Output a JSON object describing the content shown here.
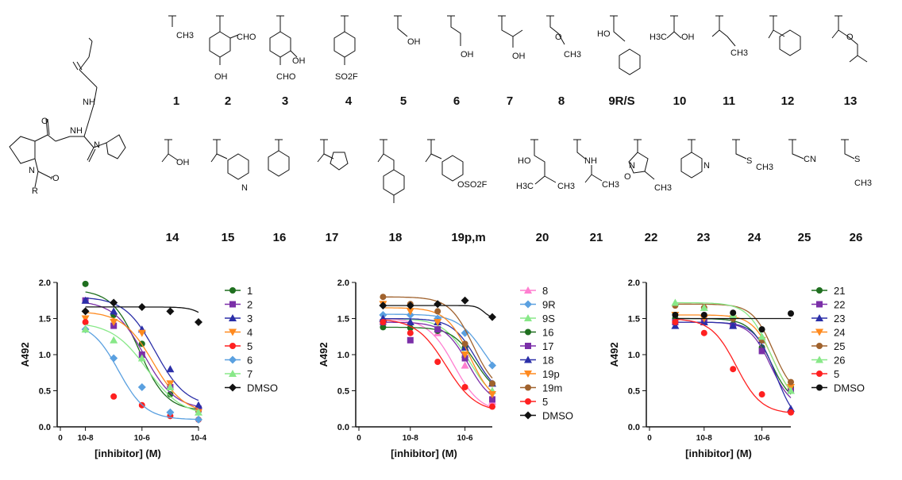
{
  "compound_labels_row1": [
    "1",
    "2",
    "3",
    "4",
    "5",
    "6",
    "7",
    "8",
    "9R/S",
    "10",
    "11",
    "12",
    "13"
  ],
  "compound_labels_row2": [
    "14",
    "15",
    "16",
    "17",
    "18",
    "19p,m",
    "20",
    "21",
    "22",
    "23",
    "24",
    "25",
    "26"
  ],
  "substituent_text": {
    "c1": "CH3",
    "c2a": "CHO",
    "c2b": "OH",
    "c3a": "OH",
    "c3b": "CHO",
    "c4": "SO2F",
    "c5": "OH",
    "c6": "OH",
    "c7": "OH",
    "c8a": "O",
    "c8b": "CH3",
    "c9": "HO",
    "c10a": "H3C",
    "c10b": "OH",
    "c11": "CH3",
    "c13": "O",
    "c14": "OH",
    "c15": "N",
    "c19": "OSO2F",
    "c20a": "HO",
    "c20b": "H3C",
    "c20c": "CH3",
    "c21a": "NH",
    "c21b": "CH3",
    "c22a": "N",
    "c22b": "O",
    "c22c": "CH3",
    "c23": "N",
    "c24a": "S",
    "c24b": "CH3",
    "c25": "CN",
    "c26a": "S",
    "c26b": "CH3",
    "core_nh": "NH",
    "core_n": "N",
    "core_r": "R",
    "core_o": "O"
  },
  "colors": {
    "dark_green": "#1f6f1f",
    "purple": "#7b2fa8",
    "blue": "#2b2fa8",
    "orange": "#ff8a1f",
    "red": "#ff2020",
    "light_blue": "#5aa0e0",
    "light_green": "#88e888",
    "black": "#111111",
    "pink": "#ff7fd0",
    "brown": "#a0622d"
  },
  "chart_data": [
    {
      "type": "scatter",
      "xlabel": "[inhibitor] (M)",
      "ylabel": "A492",
      "x_scale": "log",
      "xlim": [
        1e-09,
        0.0001
      ],
      "ylim": [
        0,
        2.0
      ],
      "xticks": [
        "0",
        "10-8",
        "10-6",
        "10-4"
      ],
      "yticks": [
        "0.0",
        "0.5",
        "1.0",
        "1.5",
        "2.0"
      ],
      "legend_position": "right",
      "series": [
        {
          "name": "1",
          "color": "dark_green",
          "marker": "circle",
          "x": [
            1e-08,
            1e-07,
            1e-06,
            1e-05,
            0.0001
          ],
          "y": [
            1.98,
            1.55,
            1.15,
            0.45,
            0.22
          ],
          "fit": {
            "top": 1.9,
            "bottom": 0.22,
            "ec50": 8e-07,
            "hill": 0.9
          }
        },
        {
          "name": "2",
          "color": "purple",
          "marker": "square",
          "x": [
            1e-08,
            1e-07,
            1e-06,
            1e-05,
            0.0001
          ],
          "y": [
            1.75,
            1.4,
            1.0,
            0.55,
            0.25
          ],
          "fit": {
            "top": 1.75,
            "bottom": 0.24,
            "ec50": 1.2e-06,
            "hill": 0.8
          }
        },
        {
          "name": "3",
          "color": "blue",
          "marker": "triangle",
          "x": [
            1e-08,
            1e-07,
            1e-06,
            1e-05,
            0.0001
          ],
          "y": [
            1.75,
            1.6,
            1.35,
            0.8,
            0.3
          ],
          "fit": {
            "top": 1.8,
            "bottom": 0.28,
            "ec50": 3e-06,
            "hill": 0.8
          }
        },
        {
          "name": "4",
          "color": "orange",
          "marker": "triangle-down",
          "x": [
            1e-08,
            1e-07,
            1e-06,
            1e-05,
            0.0001
          ],
          "y": [
            1.5,
            1.45,
            1.3,
            0.6,
            0.2
          ],
          "fit": {
            "top": 1.6,
            "bottom": 0.18,
            "ec50": 2.5e-06,
            "hill": 0.8
          }
        },
        {
          "name": "5",
          "color": "red",
          "marker": "circle",
          "x": [
            1e-08,
            1e-07,
            1e-06,
            1e-05,
            0.0001
          ],
          "y": [
            1.45,
            0.42,
            0.3,
            0.15,
            0.1
          ],
          "fit": null
        },
        {
          "name": "6",
          "color": "light_blue",
          "marker": "diamond",
          "x": [
            1e-08,
            1e-07,
            1e-06,
            1e-05,
            0.0001
          ],
          "y": [
            1.35,
            0.95,
            0.55,
            0.2,
            0.1
          ],
          "fit": {
            "top": 1.45,
            "bottom": 0.1,
            "ec50": 1.5e-07,
            "hill": 0.9
          }
        },
        {
          "name": "7",
          "color": "light_green",
          "marker": "triangle",
          "x": [
            1e-08,
            1e-07,
            1e-06,
            1e-05,
            0.0001
          ],
          "y": [
            1.35,
            1.2,
            0.95,
            0.55,
            0.2
          ],
          "fit": {
            "top": 1.45,
            "bottom": 0.15,
            "ec50": 1.5e-06,
            "hill": 0.7
          }
        },
        {
          "name": "DMSO",
          "color": "black",
          "marker": "diamond",
          "x": [
            1e-08,
            1e-07,
            1e-06,
            1e-05,
            0.0001
          ],
          "y": [
            1.6,
            1.72,
            1.66,
            1.6,
            1.45
          ],
          "fit": {
            "top": 1.66,
            "bottom": 1.2,
            "ec50": 0.0003,
            "hill": 1.5
          }
        }
      ]
    },
    {
      "type": "scatter",
      "xlabel": "[inhibitor] (M)",
      "ylabel": "A492",
      "x_scale": "log",
      "xlim": [
        1e-10,
        1e-05
      ],
      "ylim": [
        0,
        2.0
      ],
      "xticks": [
        "0",
        "10-8",
        "10-6"
      ],
      "yticks": [
        "0.0",
        "0.5",
        "1.0",
        "1.5",
        "2.0"
      ],
      "legend_position": "right",
      "series": [
        {
          "name": "8",
          "color": "pink",
          "marker": "triangle",
          "x": [
            1e-09,
            1e-08,
            1e-07,
            1e-06,
            1e-05
          ],
          "y": [
            1.5,
            1.45,
            1.3,
            0.85,
            0.35
          ],
          "fit": {
            "top": 1.5,
            "bottom": 0.2,
            "ec50": 4e-07,
            "hill": 0.9
          }
        },
        {
          "name": "9R",
          "color": "light_blue",
          "marker": "diamond",
          "x": [
            1e-09,
            1e-08,
            1e-07,
            1e-06,
            1e-05
          ],
          "y": [
            1.55,
            1.55,
            1.5,
            1.3,
            0.85
          ],
          "fit": {
            "top": 1.56,
            "bottom": 0.5,
            "ec50": 5e-06,
            "hill": 0.9
          }
        },
        {
          "name": "9S",
          "color": "light_green",
          "marker": "triangle",
          "x": [
            1e-09,
            1e-08,
            1e-07,
            1e-06,
            1e-05
          ],
          "y": [
            1.5,
            1.45,
            1.35,
            1.0,
            0.5
          ],
          "fit": {
            "top": 1.5,
            "bottom": 0.3,
            "ec50": 1.5e-06,
            "hill": 0.9
          }
        },
        {
          "name": "16",
          "color": "dark_green",
          "marker": "circle",
          "x": [
            1e-09,
            1e-08,
            1e-07,
            1e-06,
            1e-05
          ],
          "y": [
            1.38,
            1.37,
            1.33,
            1.1,
            0.6
          ],
          "fit": {
            "top": 1.38,
            "bottom": 0.4,
            "ec50": 2.5e-06,
            "hill": 1.0
          }
        },
        {
          "name": "17",
          "color": "purple",
          "marker": "square",
          "x": [
            1e-09,
            1e-08,
            1e-07,
            1e-06,
            1e-05
          ],
          "y": [
            1.45,
            1.2,
            1.35,
            0.95,
            0.38
          ],
          "fit": {
            "top": 1.45,
            "bottom": 0.3,
            "ec50": 1.3e-06,
            "hill": 1.0
          }
        },
        {
          "name": "18",
          "color": "blue",
          "marker": "triangle",
          "x": [
            1e-09,
            1e-08,
            1e-07,
            1e-06,
            1e-05
          ],
          "y": [
            1.5,
            1.45,
            1.45,
            1.1,
            0.6
          ],
          "fit": {
            "top": 1.5,
            "bottom": 0.4,
            "ec50": 2.5e-06,
            "hill": 1.0
          }
        },
        {
          "name": "19p",
          "color": "orange",
          "marker": "triangle-down",
          "x": [
            1e-09,
            1e-08,
            1e-07,
            1e-06,
            1e-05
          ],
          "y": [
            1.7,
            1.6,
            1.45,
            1.0,
            0.45
          ],
          "fit": {
            "top": 1.65,
            "bottom": 0.3,
            "ec50": 1.5e-06,
            "hill": 1.0
          }
        },
        {
          "name": "19m",
          "color": "brown",
          "marker": "circle",
          "x": [
            1e-09,
            1e-08,
            1e-07,
            1e-06,
            1e-05
          ],
          "y": [
            1.8,
            1.7,
            1.6,
            1.15,
            0.6
          ],
          "fit": {
            "top": 1.8,
            "bottom": 0.45,
            "ec50": 2e-06,
            "hill": 1.0
          }
        },
        {
          "name": "5",
          "color": "red",
          "marker": "circle",
          "x": [
            1e-09,
            1e-08,
            1e-07,
            1e-06,
            1e-05
          ],
          "y": [
            1.45,
            1.3,
            0.9,
            0.55,
            0.28
          ],
          "fit": {
            "top": 1.5,
            "bottom": 0.2,
            "ec50": 2e-07,
            "hill": 0.8
          }
        },
        {
          "name": "DMSO",
          "color": "black",
          "marker": "diamond",
          "x": [
            1e-09,
            1e-08,
            1e-07,
            1e-06,
            1e-05
          ],
          "y": [
            1.68,
            1.68,
            1.7,
            1.75,
            1.52
          ],
          "fit": {
            "top": 1.68,
            "bottom": 1.5,
            "ec50": 5e-06,
            "hill": 3.0
          }
        }
      ]
    },
    {
      "type": "scatter",
      "xlabel": "[inhibitor] (M)",
      "ylabel": "A492",
      "x_scale": "log",
      "xlim": [
        1e-10,
        1e-05
      ],
      "ylim": [
        0,
        2.0
      ],
      "xticks": [
        "0",
        "10-8",
        "10-6"
      ],
      "yticks": [
        "0.0",
        "0.5",
        "1.0",
        "1.5",
        "2.0"
      ],
      "legend_position": "right",
      "series": [
        {
          "name": "21",
          "color": "dark_green",
          "marker": "circle",
          "x": [
            1e-09,
            1e-08,
            1e-07,
            1e-06,
            1e-05
          ],
          "y": [
            1.5,
            1.48,
            1.42,
            1.1,
            0.55
          ],
          "fit": {
            "top": 1.5,
            "bottom": 0.3,
            "ec50": 2e-06,
            "hill": 1.2
          }
        },
        {
          "name": "22",
          "color": "purple",
          "marker": "square",
          "x": [
            1e-09,
            1e-08,
            1e-07,
            1e-06,
            1e-05
          ],
          "y": [
            1.45,
            1.45,
            1.4,
            1.05,
            0.5
          ],
          "fit": {
            "top": 1.45,
            "bottom": 0.25,
            "ec50": 2e-06,
            "hill": 1.2
          }
        },
        {
          "name": "23",
          "color": "blue",
          "marker": "triangle",
          "x": [
            1e-09,
            1e-08,
            1e-07,
            1e-06,
            1e-05
          ],
          "y": [
            1.4,
            1.45,
            1.4,
            1.2,
            0.25
          ],
          "fit": {
            "top": 1.45,
            "bottom": 0.0,
            "ec50": 3e-06,
            "hill": 1.2
          }
        },
        {
          "name": "24",
          "color": "orange",
          "marker": "triangle-down",
          "x": [
            1e-09,
            1e-08,
            1e-07,
            1e-06,
            1e-05
          ],
          "y": [
            1.55,
            1.5,
            1.5,
            1.2,
            0.55
          ],
          "fit": {
            "top": 1.55,
            "bottom": 0.3,
            "ec50": 2.5e-06,
            "hill": 1.2
          }
        },
        {
          "name": "25",
          "color": "brown",
          "marker": "circle",
          "x": [
            1e-09,
            1e-08,
            1e-07,
            1e-06,
            1e-05
          ],
          "y": [
            1.68,
            1.65,
            1.5,
            1.2,
            0.62
          ],
          "fit": {
            "top": 1.7,
            "bottom": 0.4,
            "ec50": 2.5e-06,
            "hill": 1.2
          }
        },
        {
          "name": "26",
          "color": "light_green",
          "marker": "triangle",
          "x": [
            1e-09,
            1e-08,
            1e-07,
            1e-06,
            1e-05
          ],
          "y": [
            1.72,
            1.65,
            1.55,
            1.25,
            0.5
          ],
          "fit": {
            "top": 1.72,
            "bottom": 0.3,
            "ec50": 2e-06,
            "hill": 1.1
          }
        },
        {
          "name": "5",
          "color": "red",
          "marker": "circle",
          "x": [
            1e-09,
            1e-08,
            1e-07,
            1e-06,
            1e-05
          ],
          "y": [
            1.45,
            1.3,
            0.8,
            0.45,
            0.2
          ],
          "fit": {
            "top": 1.5,
            "bottom": 0.18,
            "ec50": 1.3e-07,
            "hill": 1.0
          }
        },
        {
          "name": "DMSO",
          "color": "black",
          "marker": "circle",
          "x": [
            1e-09,
            1e-08,
            1e-07,
            1e-06,
            1e-05
          ],
          "y": [
            1.55,
            1.55,
            1.58,
            1.35,
            1.57
          ],
          "fit": {
            "top": 1.5,
            "bottom": 1.5,
            "ec50": 1e-06,
            "hill": 1.0
          }
        }
      ]
    }
  ]
}
